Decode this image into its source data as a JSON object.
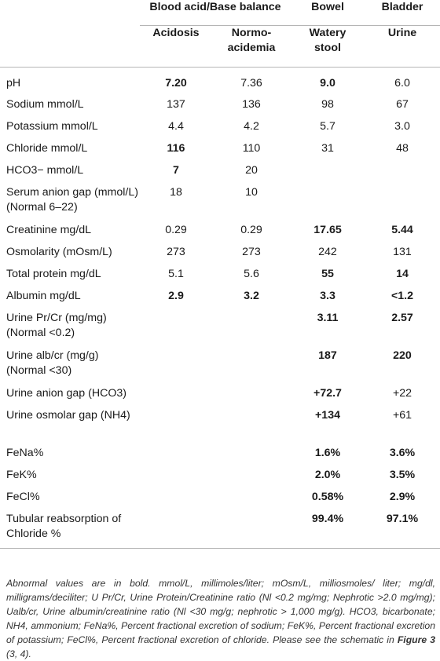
{
  "header": {
    "group_blood": "Blood acid/Base balance",
    "group_bowel": "Bowel",
    "group_bladder": "Bladder",
    "sub_acidosis": "Acidosis",
    "sub_normo": "Normo-\nacidemia",
    "sub_watery": "Watery\nstool",
    "sub_urine": "Urine"
  },
  "rows": [
    {
      "label": "pH",
      "acidosis": "7.20",
      "normo": "7.36",
      "bowel": "9.0",
      "bladder": "6.0"
    },
    {
      "label": "Sodium mmol/L",
      "acidosis": "137",
      "normo": "136",
      "bowel": "98",
      "bladder": "67"
    },
    {
      "label": "Potassium mmol/L",
      "acidosis": "4.4",
      "normo": "4.2",
      "bowel": "5.7",
      "bladder": "3.0"
    },
    {
      "label": "Chloride mmol/L",
      "acidosis": "116",
      "normo": "110",
      "bowel": "31",
      "bladder": "48"
    },
    {
      "label": "HCO3− mmol/L",
      "acidosis": "7",
      "normo": "20",
      "bowel": "",
      "bladder": ""
    },
    {
      "label": "Serum anion gap (mmol/L) (Normal 6–22)",
      "acidosis": "18",
      "normo": "10",
      "bowel": "",
      "bladder": ""
    },
    {
      "label": "Creatinine mg/dL",
      "acidosis": "0.29",
      "normo": "0.29",
      "bowel": "17.65",
      "bladder": "5.44"
    },
    {
      "label": "Osmolarity (mOsm/L)",
      "acidosis": "273",
      "normo": "273",
      "bowel": "242",
      "bladder": "131"
    },
    {
      "label": "Total protein mg/dL",
      "acidosis": "5.1",
      "normo": "5.6",
      "bowel": "55",
      "bladder": "14"
    },
    {
      "label": "Albumin mg/dL",
      "acidosis": "2.9",
      "normo": "3.2",
      "bowel": "3.3",
      "bladder": "<1.2"
    },
    {
      "label": "Urine Pr/Cr (mg/mg) (Normal <0.2)",
      "acidosis": "",
      "normo": "",
      "bowel": "3.11",
      "bladder": "2.57"
    },
    {
      "label": "Urine alb/cr (mg/g) (Normal <30)",
      "acidosis": "",
      "normo": "",
      "bowel": "187",
      "bladder": "220"
    },
    {
      "label": "Urine anion gap (HCO3)",
      "acidosis": "",
      "normo": "",
      "bowel": "+72.7",
      "bladder": "+22"
    },
    {
      "label": "Urine osmolar gap (NH4)",
      "acidosis": "",
      "normo": "",
      "bowel": "+134",
      "bladder": "+61"
    },
    {
      "label": "FeNa%",
      "acidosis": "",
      "normo": "",
      "bowel": "1.6%",
      "bladder": "3.6%"
    },
    {
      "label": "FeK%",
      "acidosis": "",
      "normo": "",
      "bowel": "2.0%",
      "bladder": "3.5%"
    },
    {
      "label": "FeCl%",
      "acidosis": "",
      "normo": "",
      "bowel": "0.58%",
      "bladder": "2.9%"
    },
    {
      "label": "Tubular reabsorption of Chloride %",
      "acidosis": "",
      "normo": "",
      "bowel": "99.4%",
      "bladder": "97.1%"
    }
  ],
  "footnote": {
    "text": "Abnormal values are in bold. mmol/L, millimoles/liter; mOsm/L, milliosmoles/ liter; mg/dl, milligrams/deciliter; U Pr/Cr, Urine Protein/Creatinine ratio (Nl <0.2 mg/mg; Nephrotic >2.0 mg/mg); Ualb/cr, Urine albumin/creatinine ratio (Nl <30 mg/g; nephrotic > 1,000 mg/g). HCO3, bicarbonate; NH4, ammonium; FeNa%, Percent fractional excretion of sodium; FeK%, Percent fractional excretion of potassium; FeCl%, Percent fractional excretion of chloride. Please see the schematic in ",
    "figure_ref": "Figure 3",
    "refs": " (3, 4)."
  }
}
